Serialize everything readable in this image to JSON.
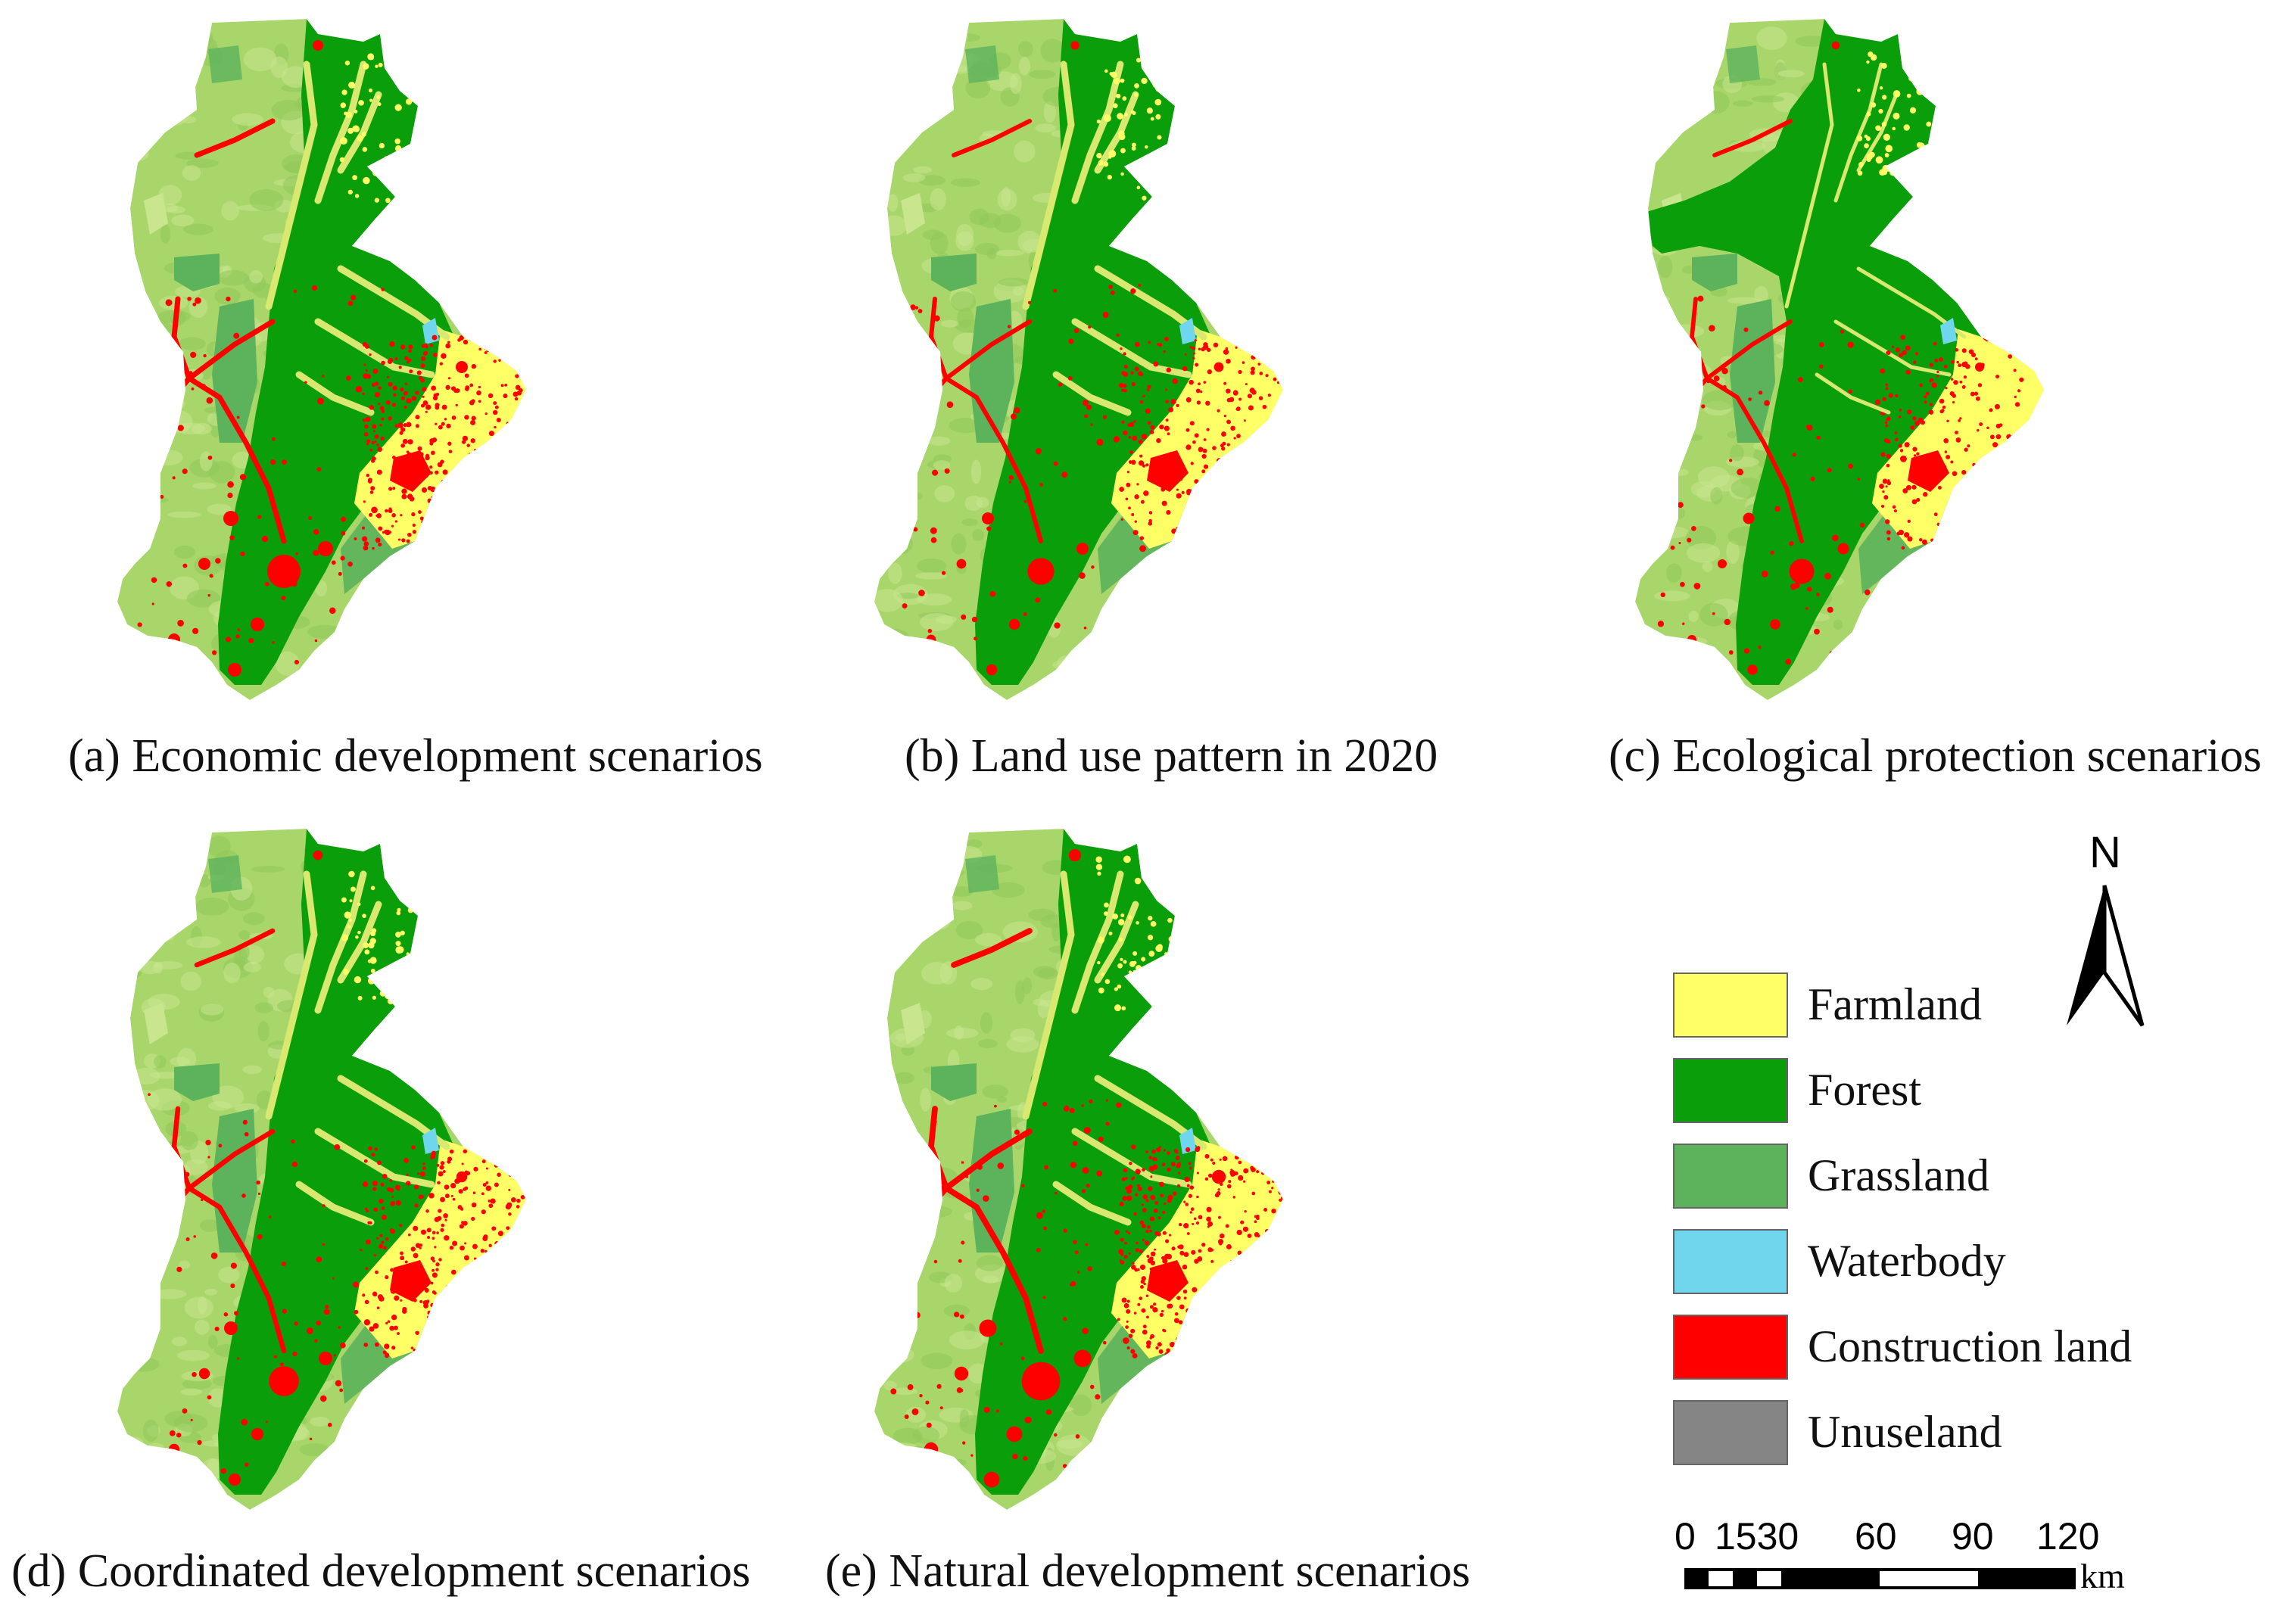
{
  "panels": [
    {
      "id": "a",
      "letter": "(a)",
      "title": "Economic development scenarios"
    },
    {
      "id": "b",
      "letter": "(b)",
      "title": "Land use pattern in 2020"
    },
    {
      "id": "c",
      "letter": "(c)",
      "title": "Ecological protection scenarios"
    },
    {
      "id": "d",
      "letter": "(d)",
      "title": "Coordinated development scenarios"
    },
    {
      "id": "e",
      "letter": "(e)",
      "title": "Natural development scenarios"
    }
  ],
  "legend": [
    {
      "label": "Farmland",
      "color": "#ffff66"
    },
    {
      "label": "Forest",
      "color": "#0a9e0a"
    },
    {
      "label": "Grassland",
      "color": "#5cb35c"
    },
    {
      "label": "Waterbody",
      "color": "#6fd6ee"
    },
    {
      "label": "Construction land",
      "color": "#ff0000"
    },
    {
      "label": "Unuseland",
      "color": "#858585"
    }
  ],
  "north_arrow": {
    "label": "N"
  },
  "scale_bar": {
    "ticks": [
      "0",
      "1530",
      "60",
      "90",
      "120"
    ],
    "unit": "km"
  },
  "colors": {
    "farmland_mix": "#a8d66a",
    "light_green": "#c9e58e",
    "forest": "#0a9e0a",
    "grassland": "#5cb35c",
    "farmland": "#ffff66",
    "construction": "#ff0000",
    "waterbody": "#6fd6ee"
  }
}
